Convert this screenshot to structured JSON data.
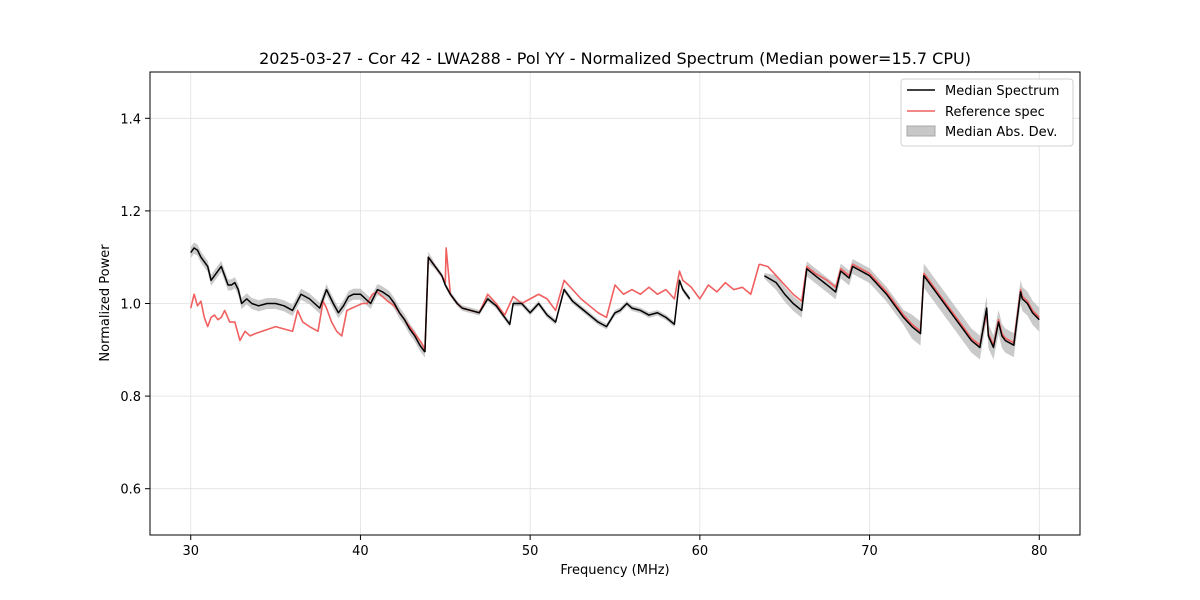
{
  "chart_data": {
    "type": "line",
    "title": "2025-03-27 - Cor 42 - LWA288 - Pol YY - Normalized Spectrum (Median power=15.7 CPU)",
    "xlabel": "Frequency (MHz)",
    "ylabel": "Normalized Power",
    "xlim": [
      27.6,
      82.4
    ],
    "ylim": [
      0.5,
      1.5
    ],
    "xticks": [
      30,
      40,
      50,
      60,
      70,
      80
    ],
    "yticks": [
      0.6,
      0.8,
      1.0,
      1.2,
      1.4
    ],
    "xtick_labels": [
      "30",
      "40",
      "50",
      "60",
      "70",
      "80"
    ],
    "ytick_labels": [
      "0.6",
      "0.8",
      "1.0",
      "1.2",
      "1.4"
    ],
    "grid": true,
    "legend_position": "top-right",
    "legend": [
      "Median Spectrum",
      "Reference spec",
      "Median Abs. Dev."
    ],
    "colors": {
      "median": "#000000",
      "reference": "#f06060",
      "mad": "#b8b8b8",
      "grid": "#e0e0e0"
    },
    "series": [
      {
        "name": "Median Spectrum",
        "segments": [
          {
            "x": [
              30.0,
              30.2,
              30.4,
              30.6,
              30.8,
              31.0,
              31.2,
              31.4,
              31.6,
              31.8,
              32.0,
              32.2,
              32.4,
              32.6,
              32.8,
              33.0,
              33.3,
              33.6,
              34.0,
              34.5,
              35.0,
              35.5,
              36.0,
              36.5,
              37.0,
              37.3,
              37.6,
              38.0,
              38.4,
              38.7,
              39.0,
              39.3,
              39.6,
              40.0,
              40.3,
              40.6,
              41.0,
              41.3,
              41.7,
              42.0,
              42.3,
              42.6,
              42.9,
              43.2,
              43.5,
              43.8
            ],
            "y": [
              1.11,
              1.12,
              1.115,
              1.1,
              1.09,
              1.08,
              1.05,
              1.06,
              1.07,
              1.08,
              1.06,
              1.04,
              1.04,
              1.045,
              1.03,
              1.0,
              1.01,
              1.0,
              0.995,
              1.0,
              1.0,
              0.995,
              0.985,
              1.02,
              1.01,
              1.0,
              0.99,
              1.03,
              1.0,
              0.98,
              0.995,
              1.015,
              1.02,
              1.02,
              1.01,
              1.0,
              1.03,
              1.025,
              1.015,
              1.0,
              0.98,
              0.965,
              0.945,
              0.93,
              0.91,
              0.895
            ]
          },
          {
            "x": [
              43.8,
              44.0,
              44.4,
              44.8,
              45.0,
              45.3,
              45.7,
              46.0,
              46.5,
              47.0,
              47.5,
              48.0,
              48.5,
              48.8,
              49.0,
              49.5,
              50.0,
              50.5,
              51.0,
              51.5,
              52.0,
              52.5,
              53.0,
              53.5,
              54.0,
              54.5,
              55.0,
              55.3,
              55.7,
              56.0,
              56.5,
              57.0,
              57.5,
              58.0,
              58.5,
              58.8,
              59.0,
              59.4
            ],
            "y": [
              0.895,
              1.1,
              1.08,
              1.06,
              1.04,
              1.02,
              1.0,
              0.99,
              0.985,
              0.98,
              1.01,
              0.995,
              0.97,
              0.955,
              1.0,
              1.0,
              0.98,
              1.0,
              0.975,
              0.96,
              1.03,
              1.005,
              0.99,
              0.975,
              0.96,
              0.95,
              0.98,
              0.985,
              1.0,
              0.99,
              0.985,
              0.975,
              0.98,
              0.97,
              0.955,
              1.05,
              1.03,
              1.01
            ]
          },
          {
            "x": [
              63.8,
              64.5,
              65.0,
              65.5,
              66.0,
              66.3,
              66.8,
              67.5,
              68.0,
              68.3,
              68.8,
              69.0,
              69.5,
              70.0,
              70.5,
              71.0,
              71.5,
              72.0,
              72.5,
              73.0,
              73.2,
              73.5,
              74.0,
              74.5,
              75.0,
              75.5,
              76.0,
              76.5,
              76.9,
              77.0,
              77.3,
              77.6,
              77.8,
              78.0,
              78.5,
              78.9,
              79.0,
              79.3,
              79.6,
              80.0
            ],
            "y": [
              1.06,
              1.045,
              1.02,
              1.0,
              0.985,
              1.075,
              1.06,
              1.04,
              1.025,
              1.07,
              1.055,
              1.08,
              1.07,
              1.06,
              1.04,
              1.02,
              0.995,
              0.97,
              0.95,
              0.935,
              1.06,
              1.045,
              1.02,
              0.995,
              0.97,
              0.945,
              0.92,
              0.905,
              0.99,
              0.93,
              0.905,
              0.96,
              0.93,
              0.92,
              0.91,
              1.025,
              1.01,
              1.0,
              0.98,
              0.965
            ]
          }
        ]
      },
      {
        "name": "Reference spec",
        "segments": [
          {
            "x": [
              30.0,
              30.2,
              30.4,
              30.6,
              30.8,
              31.0,
              31.2,
              31.4,
              31.6,
              31.8,
              32.0,
              32.3,
              32.6,
              32.9,
              33.2,
              33.5,
              33.8,
              34.2,
              34.6,
              35.0,
              35.5,
              36.0,
              36.3,
              36.6,
              37.0,
              37.5,
              37.8,
              38.0,
              38.3,
              38.6,
              38.9,
              39.2,
              39.5,
              39.8,
              40.1,
              40.4,
              40.7,
              41.0,
              41.3,
              41.6,
              42.0,
              42.3,
              42.6,
              43.0,
              43.3,
              43.6,
              43.8
            ],
            "y": [
              0.99,
              1.02,
              0.995,
              1.005,
              0.97,
              0.95,
              0.97,
              0.975,
              0.965,
              0.97,
              0.985,
              0.96,
              0.96,
              0.92,
              0.94,
              0.93,
              0.935,
              0.94,
              0.945,
              0.95,
              0.945,
              0.94,
              0.985,
              0.96,
              0.95,
              0.94,
              1.005,
              0.99,
              0.96,
              0.94,
              0.93,
              0.985,
              0.99,
              0.995,
              1.0,
              1.0,
              1.02,
              1.025,
              1.015,
              1.005,
              0.995,
              0.98,
              0.965,
              0.945,
              0.93,
              0.915,
              0.9
            ]
          },
          {
            "x": [
              43.8,
              44.0,
              44.4,
              44.8,
              45.0,
              45.05,
              45.3,
              45.7,
              46.0,
              46.5,
              47.0,
              47.5,
              48.0,
              48.5,
              49.0,
              49.5,
              50.0,
              50.5,
              51.0,
              51.5,
              52.0,
              52.5,
              53.0,
              53.5,
              54.0,
              54.5,
              55.0,
              55.5,
              56.0,
              56.5,
              57.0,
              57.5,
              58.0,
              58.5,
              58.8,
              59.0,
              59.5,
              60.0,
              60.5,
              61.0,
              61.5,
              62.0,
              62.5,
              63.0,
              63.5
            ],
            "y": [
              0.9,
              1.1,
              1.08,
              1.06,
              1.045,
              1.12,
              1.02,
              1.0,
              0.99,
              0.985,
              0.98,
              1.02,
              1.0,
              0.975,
              1.015,
              1.0,
              1.01,
              1.02,
              1.01,
              0.985,
              1.05,
              1.03,
              1.01,
              0.995,
              0.98,
              0.97,
              1.04,
              1.02,
              1.03,
              1.02,
              1.035,
              1.02,
              1.03,
              1.01,
              1.07,
              1.05,
              1.035,
              1.01,
              1.04,
              1.025,
              1.045,
              1.03,
              1.035,
              1.02,
              1.085
            ]
          },
          {
            "x": [
              63.5,
              64.0,
              64.5,
              65.0,
              65.5,
              66.0,
              66.3,
              66.8,
              67.5,
              68.0,
              68.3,
              68.8,
              69.0,
              69.5,
              70.0,
              70.5,
              71.0,
              71.5,
              72.0,
              72.5,
              73.0,
              73.2,
              73.5,
              74.0,
              74.5,
              75.0,
              75.5,
              76.0,
              76.5,
              76.9,
              77.0,
              77.3,
              77.6,
              77.8,
              78.0,
              78.5,
              78.9,
              79.0,
              79.3,
              79.6,
              80.0
            ],
            "y": [
              1.085,
              1.08,
              1.06,
              1.04,
              1.02,
              1.005,
              1.08,
              1.065,
              1.05,
              1.035,
              1.075,
              1.06,
              1.085,
              1.075,
              1.065,
              1.045,
              1.025,
              1.0,
              0.975,
              0.955,
              0.94,
              1.065,
              1.05,
              1.025,
              1.0,
              0.975,
              0.95,
              0.925,
              0.91,
              0.98,
              0.935,
              0.91,
              0.965,
              0.935,
              0.925,
              0.915,
              1.03,
              1.015,
              1.005,
              0.985,
              0.97
            ]
          }
        ]
      },
      {
        "name": "Median Abs. Dev.",
        "band_halfwidth": [
          {
            "from": 30.0,
            "to": 44.0,
            "value": 0.012
          },
          {
            "from": 44.0,
            "to": 63.8,
            "value": 0.006
          },
          {
            "from": 63.8,
            "to": 72.0,
            "value": 0.016
          },
          {
            "from": 72.0,
            "to": 80.0,
            "value": 0.026
          }
        ]
      }
    ]
  }
}
